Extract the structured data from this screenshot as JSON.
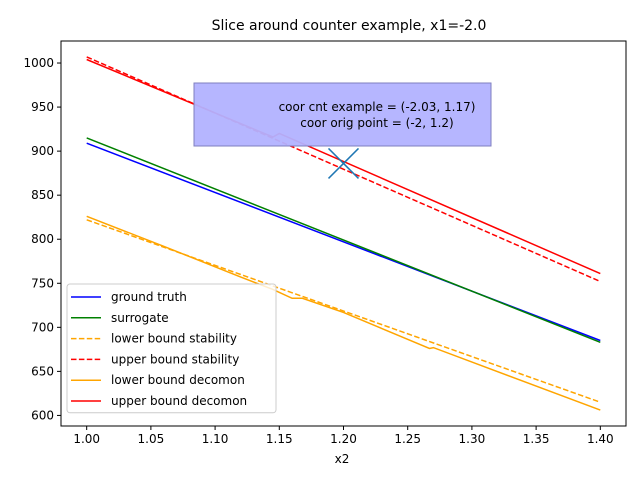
{
  "chart_data": {
    "type": "line",
    "title": "Slice around counter example, x1=-2.0",
    "xlabel": "x2",
    "ylabel": "",
    "xlim": [
      0.98,
      1.42
    ],
    "ylim": [
      588,
      1025
    ],
    "xticks": [
      1.0,
      1.05,
      1.1,
      1.15,
      1.2,
      1.25,
      1.3,
      1.35,
      1.4
    ],
    "xtick_labels": [
      "1.00",
      "1.05",
      "1.10",
      "1.15",
      "1.20",
      "1.25",
      "1.30",
      "1.35",
      "1.40"
    ],
    "yticks": [
      600,
      650,
      700,
      750,
      800,
      850,
      900,
      950,
      1000
    ],
    "ytick_labels": [
      "600",
      "650",
      "700",
      "750",
      "800",
      "850",
      "900",
      "950",
      "1000"
    ],
    "grid": false,
    "legend_position": "lower-left",
    "series": [
      {
        "name": "ground truth",
        "color": "#0000ff",
        "dash": "solid",
        "x": [
          1.0,
          1.4
        ],
        "y": [
          909,
          685
        ]
      },
      {
        "name": "surrogate",
        "color": "#008000",
        "dash": "solid",
        "x": [
          1.0,
          1.145,
          1.4
        ],
        "y": [
          915,
          831,
          683
        ]
      },
      {
        "name": "lower bound stability",
        "color": "#ffa500",
        "dash": "dashed",
        "x": [
          1.0,
          1.4
        ],
        "y": [
          822,
          615
        ]
      },
      {
        "name": "upper bound stability",
        "color": "#ff0000",
        "dash": "dashed",
        "x": [
          1.0,
          1.4
        ],
        "y": [
          1007,
          752
        ]
      },
      {
        "name": "lower bound decomon",
        "color": "#ffa500",
        "dash": "solid",
        "x": [
          1.0,
          1.06,
          1.12,
          1.145,
          1.16,
          1.168,
          1.2,
          1.267,
          1.27,
          1.4
        ],
        "y": [
          826,
          792,
          757,
          743,
          733,
          733,
          717,
          676,
          677,
          606
        ]
      },
      {
        "name": "upper bound decomon",
        "color": "#ff0000",
        "dash": "solid",
        "x": [
          1.0,
          1.145,
          1.15,
          1.4
        ],
        "y": [
          1004,
          916,
          920,
          761
        ]
      }
    ],
    "marker": {
      "x": 1.2,
      "y": 886,
      "symbol": "x",
      "color": "#1f77b4"
    },
    "annotation": {
      "lines": [
        "coor cnt example = (-2.03, 1.17)",
        "coor orig point = (-2, 1.2)"
      ],
      "box_color": "#b2b2ff",
      "box_border": "#7f7fbf"
    }
  }
}
